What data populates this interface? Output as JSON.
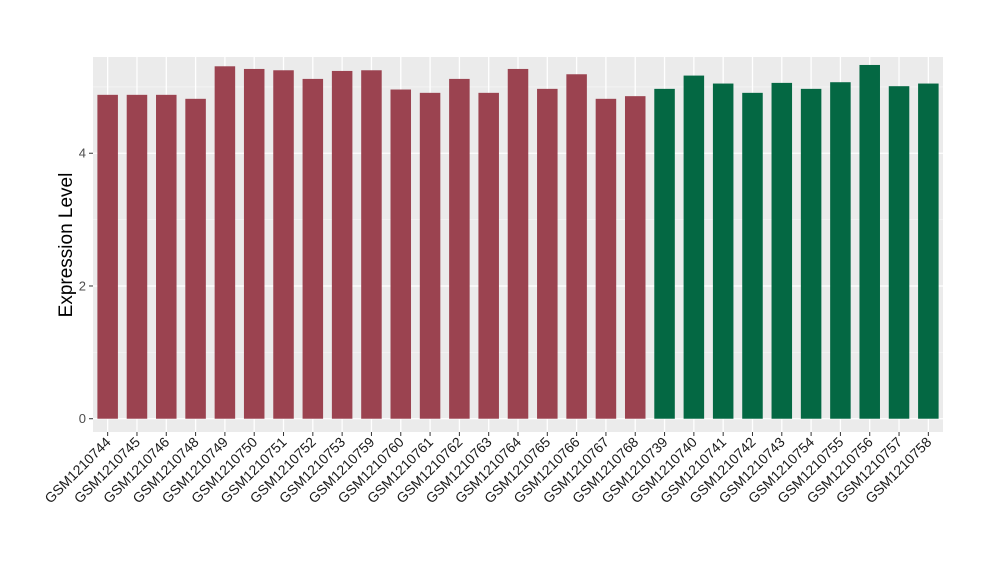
{
  "chart_data": {
    "type": "bar",
    "title": "",
    "xlabel": "",
    "ylabel": "Expression Level",
    "ylim": [
      -0.2,
      5.45
    ],
    "yticks": [
      0,
      2,
      4
    ],
    "grid": true,
    "legend": "none",
    "categories": [
      "GSM1210744",
      "GSM1210745",
      "GSM1210746",
      "GSM1210748",
      "GSM1210749",
      "GSM1210750",
      "GSM1210751",
      "GSM1210752",
      "GSM1210753",
      "GSM1210759",
      "GSM1210760",
      "GSM1210761",
      "GSM1210762",
      "GSM1210763",
      "GSM1210764",
      "GSM1210765",
      "GSM1210766",
      "GSM1210767",
      "GSM1210768",
      "GSM1210739",
      "GSM1210740",
      "GSM1210741",
      "GSM1210742",
      "GSM1210743",
      "GSM1210754",
      "GSM1210755",
      "GSM1210756",
      "GSM1210757",
      "GSM1210758"
    ],
    "values": [
      4.88,
      4.88,
      4.88,
      4.82,
      5.31,
      5.27,
      5.25,
      5.12,
      5.24,
      5.25,
      4.96,
      4.91,
      5.12,
      4.91,
      5.27,
      4.97,
      5.19,
      4.82,
      4.86,
      4.97,
      5.17,
      5.05,
      4.91,
      5.06,
      4.97,
      5.07,
      5.33,
      5.01,
      5.05
    ],
    "group_colors": [
      "#9b4350",
      "#046843"
    ],
    "groups": [
      0,
      0,
      0,
      0,
      0,
      0,
      0,
      0,
      0,
      0,
      0,
      0,
      0,
      0,
      0,
      0,
      0,
      0,
      0,
      1,
      1,
      1,
      1,
      1,
      1,
      1,
      1,
      1,
      1
    ]
  }
}
